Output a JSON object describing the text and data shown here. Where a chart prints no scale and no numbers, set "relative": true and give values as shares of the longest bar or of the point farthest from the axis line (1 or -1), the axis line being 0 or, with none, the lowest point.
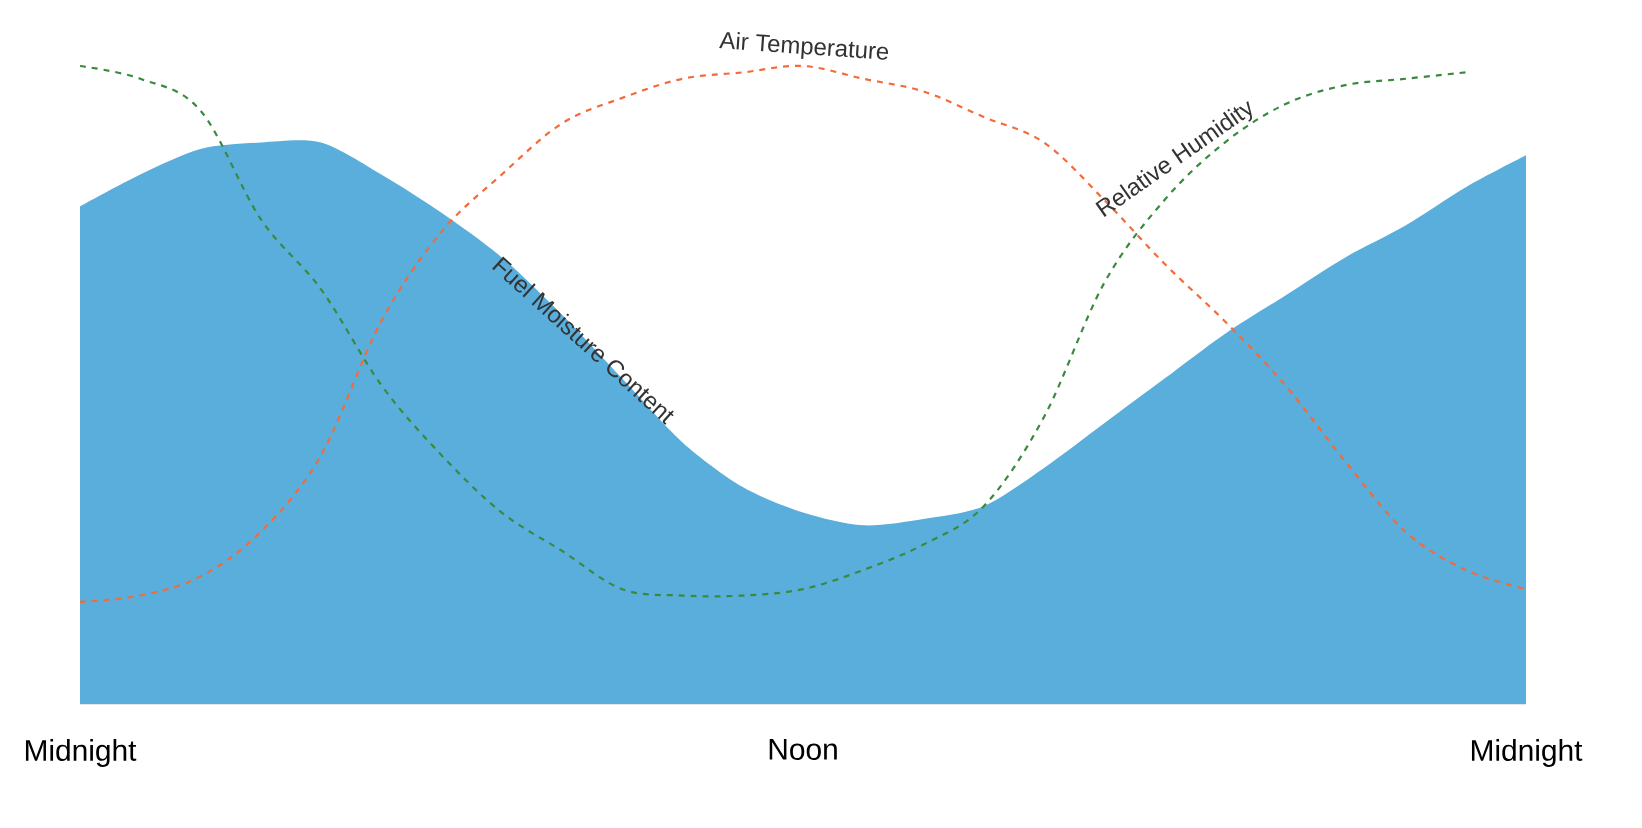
{
  "chart_data": {
    "type": "line",
    "relative": true,
    "categories": [
      "Midnight",
      null,
      null,
      null,
      null,
      null,
      null,
      null,
      null,
      null,
      null,
      null,
      "Noon",
      null,
      null,
      null,
      null,
      null,
      null,
      null,
      null,
      null,
      null,
      null,
      "Midnight"
    ],
    "series": [
      {
        "name": "Fuel Moisture Content",
        "type": "area",
        "color": "#5aaedc",
        "values": [
          0.78,
          0.83,
          0.87,
          0.88,
          0.88,
          0.83,
          0.77,
          0.7,
          0.61,
          0.51,
          0.41,
          0.34,
          0.3,
          0.28,
          0.29,
          0.31,
          0.37,
          0.44,
          0.51,
          0.58,
          0.64,
          0.7,
          0.75,
          0.81,
          0.86
        ]
      },
      {
        "name": "Air Temperature",
        "line_style": "dashed",
        "color": "#f26b3a",
        "values": [
          0.16,
          0.17,
          0.2,
          0.27,
          0.39,
          0.6,
          0.74,
          0.83,
          0.91,
          0.95,
          0.98,
          0.99,
          1.0,
          0.98,
          0.96,
          0.92,
          0.88,
          0.79,
          0.69,
          0.6,
          0.5,
          0.38,
          0.27,
          0.21,
          0.18
        ]
      },
      {
        "name": "Relative Humidity",
        "line_style": "dashed",
        "color": "#3a8a3e",
        "values": [
          1.0,
          0.98,
          0.93,
          0.76,
          0.65,
          0.5,
          0.39,
          0.3,
          0.24,
          0.18,
          0.17,
          0.17,
          0.18,
          0.21,
          0.25,
          0.31,
          0.45,
          0.66,
          0.79,
          0.88,
          0.94,
          0.97,
          0.98,
          0.99,
          null
        ]
      }
    ]
  }
}
